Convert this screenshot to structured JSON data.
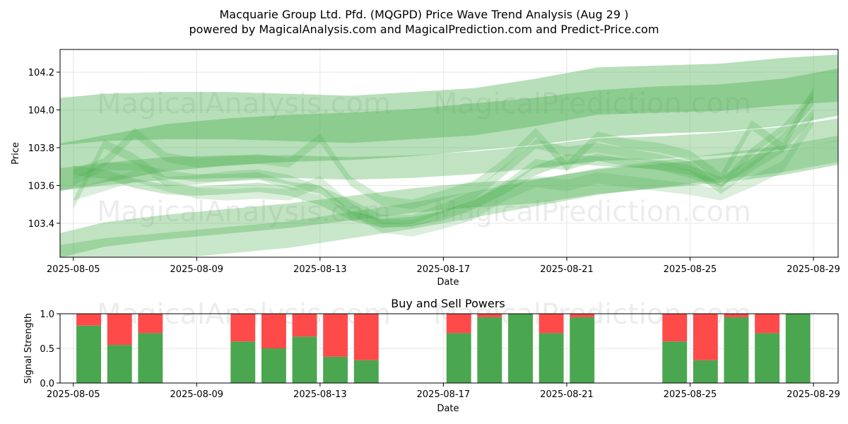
{
  "page": {
    "title": "Macquarie Group Ltd. Pfd. (MQGPD) Price Wave Trend Analysis (Aug 29 )",
    "subtitle": "powered by MagicalAnalysis.com and MagicalPrediction.com and Predict-Price.com",
    "watermarks": [
      "MagicalAnalysis.com",
      "MagicalPrediction.com"
    ]
  },
  "colors": {
    "band_green": "#4caf50",
    "buy_green": "#4aa64f",
    "sell_red": "#ff4a4a",
    "grid": "#e6e6e6"
  },
  "chart_data": [
    {
      "type": "area",
      "title": "",
      "xlabel": "Date",
      "ylabel": "Price",
      "xlim": [
        "2025-08-04",
        "2025-08-30"
      ],
      "ylim": [
        103.22,
        104.32
      ],
      "grid": true,
      "x_ticks": [
        "2025-08-05",
        "2025-08-09",
        "2025-08-13",
        "2025-08-17",
        "2025-08-21",
        "2025-08-25",
        "2025-08-29"
      ],
      "y_ticks": [
        "103.4",
        "103.6",
        "103.8",
        "104.0",
        "104.2"
      ],
      "bands": [
        {
          "x": [
            "2025-08-04",
            "2025-08-06",
            "2025-08-08",
            "2025-08-10",
            "2025-08-12",
            "2025-08-14",
            "2025-08-16",
            "2025-08-18",
            "2025-08-20",
            "2025-08-22",
            "2025-08-24",
            "2025-08-26",
            "2025-08-28",
            "2025-08-30"
          ],
          "center": [
            103.93,
            103.96,
            103.97,
            103.97,
            103.96,
            103.95,
            103.97,
            103.99,
            104.04,
            104.1,
            104.11,
            104.12,
            104.15,
            104.17
          ],
          "width": 0.25,
          "opacity": 0.4
        },
        {
          "x": [
            "2025-08-04",
            "2025-08-06",
            "2025-08-08",
            "2025-08-10",
            "2025-08-12",
            "2025-08-14",
            "2025-08-16",
            "2025-08-18",
            "2025-08-20",
            "2025-08-22",
            "2025-08-24",
            "2025-08-26",
            "2025-08-28",
            "2025-08-30"
          ],
          "center": [
            103.68,
            103.74,
            103.8,
            103.83,
            103.85,
            103.86,
            103.88,
            103.91,
            103.94,
            103.98,
            104.0,
            104.01,
            104.04,
            104.1
          ],
          "width": 0.25,
          "opacity": 0.4
        },
        {
          "x": [
            "2025-08-04",
            "2025-08-06",
            "2025-08-08",
            "2025-08-10",
            "2025-08-12",
            "2025-08-14",
            "2025-08-16",
            "2025-08-18",
            "2025-08-20",
            "2025-08-22",
            "2025-08-24",
            "2025-08-26",
            "2025-08-28",
            "2025-08-30"
          ],
          "center": [
            103.62,
            103.66,
            103.69,
            103.7,
            103.7,
            103.69,
            103.7,
            103.72,
            103.75,
            103.79,
            103.8,
            103.82,
            103.85,
            103.9
          ],
          "width": 0.12,
          "opacity": 0.35
        },
        {
          "x": [
            "2025-08-04",
            "2025-08-06",
            "2025-08-08",
            "2025-08-10",
            "2025-08-12",
            "2025-08-14",
            "2025-08-16",
            "2025-08-18",
            "2025-08-20",
            "2025-08-22",
            "2025-08-24",
            "2025-08-26",
            "2025-08-28",
            "2025-08-30"
          ],
          "center": [
            103.26,
            103.34,
            103.38,
            103.41,
            103.44,
            103.48,
            103.52,
            103.55,
            103.57,
            103.62,
            103.65,
            103.68,
            103.72,
            103.78
          ],
          "width": 0.13,
          "opacity": 0.35
        },
        {
          "x": [
            "2025-08-04",
            "2025-08-06",
            "2025-08-08",
            "2025-08-10",
            "2025-08-12",
            "2025-08-14",
            "2025-08-16",
            "2025-08-18",
            "2025-08-20",
            "2025-08-22",
            "2025-08-24",
            "2025-08-26",
            "2025-08-28",
            "2025-08-30"
          ],
          "center": [
            103.2,
            103.25,
            103.28,
            103.31,
            103.34,
            103.39,
            103.44,
            103.5,
            103.56,
            103.62,
            103.66,
            103.7,
            103.74,
            103.8
          ],
          "width": 0.14,
          "opacity": 0.3
        },
        {
          "x": [
            "2025-08-05",
            "2025-08-06",
            "2025-08-07",
            "2025-08-08",
            "2025-08-09",
            "2025-08-10",
            "2025-08-11",
            "2025-08-12",
            "2025-08-13",
            "2025-08-14",
            "2025-08-15",
            "2025-08-16",
            "2025-08-17",
            "2025-08-18",
            "2025-08-19",
            "2025-08-20",
            "2025-08-21",
            "2025-08-22",
            "2025-08-23",
            "2025-08-24",
            "2025-08-25",
            "2025-08-26",
            "2025-08-27",
            "2025-08-28",
            "2025-08-29"
          ],
          "center": [
            103.68,
            103.66,
            103.61,
            103.58,
            103.57,
            103.58,
            103.59,
            103.57,
            103.52,
            103.44,
            103.4,
            103.41,
            103.44,
            103.5,
            103.58,
            103.68,
            103.74,
            103.73,
            103.72,
            103.71,
            103.68,
            103.62,
            103.72,
            103.85,
            104.05
          ],
          "width": 0.05,
          "opacity": 0.3
        },
        {
          "x": [
            "2025-08-05",
            "2025-08-06",
            "2025-08-07",
            "2025-08-08",
            "2025-08-09",
            "2025-08-10",
            "2025-08-11",
            "2025-08-12",
            "2025-08-13",
            "2025-08-14",
            "2025-08-15",
            "2025-08-16",
            "2025-08-17",
            "2025-08-18",
            "2025-08-19",
            "2025-08-20",
            "2025-08-21",
            "2025-08-22",
            "2025-08-23",
            "2025-08-24",
            "2025-08-25",
            "2025-08-26",
            "2025-08-27",
            "2025-08-28",
            "2025-08-29"
          ],
          "center": [
            103.5,
            103.82,
            103.74,
            103.62,
            103.63,
            103.65,
            103.66,
            103.63,
            103.57,
            103.5,
            103.42,
            103.42,
            103.48,
            103.55,
            103.68,
            103.82,
            103.78,
            103.8,
            103.77,
            103.74,
            103.7,
            103.58,
            103.7,
            103.8,
            104.1
          ],
          "width": 0.05,
          "opacity": 0.25
        },
        {
          "x": [
            "2025-08-05",
            "2025-08-06",
            "2025-08-07",
            "2025-08-08",
            "2025-08-09",
            "2025-08-10",
            "2025-08-11",
            "2025-08-12",
            "2025-08-13",
            "2025-08-14",
            "2025-08-15",
            "2025-08-16",
            "2025-08-17",
            "2025-08-18",
            "2025-08-19",
            "2025-08-20",
            "2025-08-21",
            "2025-08-22",
            "2025-08-23",
            "2025-08-24",
            "2025-08-25",
            "2025-08-26",
            "2025-08-27",
            "2025-08-28",
            "2025-08-29"
          ],
          "center": [
            103.66,
            103.72,
            103.88,
            103.75,
            103.72,
            103.73,
            103.74,
            103.72,
            103.85,
            103.62,
            103.52,
            103.5,
            103.55,
            103.6,
            103.72,
            103.88,
            103.7,
            103.86,
            103.82,
            103.8,
            103.76,
            103.64,
            103.92,
            103.8,
            103.98
          ],
          "width": 0.05,
          "opacity": 0.25
        },
        {
          "x": [
            "2025-08-05",
            "2025-08-06",
            "2025-08-07",
            "2025-08-08",
            "2025-08-09",
            "2025-08-10",
            "2025-08-11",
            "2025-08-12",
            "2025-08-13",
            "2025-08-14",
            "2025-08-15",
            "2025-08-16",
            "2025-08-17",
            "2025-08-18",
            "2025-08-19",
            "2025-08-20",
            "2025-08-21",
            "2025-08-22",
            "2025-08-23",
            "2025-08-24",
            "2025-08-25",
            "2025-08-26",
            "2025-08-27",
            "2025-08-28",
            "2025-08-29"
          ],
          "center": [
            103.55,
            103.6,
            103.65,
            103.6,
            103.56,
            103.55,
            103.56,
            103.55,
            103.62,
            103.48,
            103.38,
            103.36,
            103.4,
            103.45,
            103.55,
            103.62,
            103.6,
            103.64,
            103.62,
            103.6,
            103.58,
            103.55,
            103.62,
            103.7,
            103.95
          ],
          "width": 0.06,
          "opacity": 0.2
        },
        {
          "x": [
            "2025-08-05",
            "2025-08-06",
            "2025-08-07",
            "2025-08-08",
            "2025-08-09",
            "2025-08-10",
            "2025-08-11",
            "2025-08-12",
            "2025-08-13",
            "2025-08-14",
            "2025-08-15",
            "2025-08-16",
            "2025-08-17",
            "2025-08-18",
            "2025-08-19",
            "2025-08-20",
            "2025-08-21",
            "2025-08-22",
            "2025-08-23",
            "2025-08-24",
            "2025-08-25",
            "2025-08-26",
            "2025-08-27",
            "2025-08-28",
            "2025-08-29"
          ],
          "center": [
            103.62,
            103.7,
            103.7,
            103.66,
            103.64,
            103.64,
            103.65,
            103.6,
            103.58,
            103.45,
            103.4,
            103.4,
            103.45,
            103.5,
            103.6,
            103.72,
            103.7,
            103.75,
            103.72,
            103.7,
            103.66,
            103.6,
            103.78,
            103.9,
            104.08
          ],
          "width": 0.04,
          "opacity": 0.25
        }
      ]
    },
    {
      "type": "bar",
      "title": "Buy and Sell Powers",
      "xlabel": "Date",
      "ylabel": "Signal Strength",
      "xlim": [
        "2025-08-04",
        "2025-08-30"
      ],
      "ylim": [
        0,
        1
      ],
      "grid": true,
      "x_ticks": [
        "2025-08-05",
        "2025-08-09",
        "2025-08-13",
        "2025-08-17",
        "2025-08-21",
        "2025-08-25",
        "2025-08-29"
      ],
      "y_ticks": [
        "0.0",
        "0.5",
        "1.0"
      ],
      "categories": [
        "2025-08-05",
        "2025-08-06",
        "2025-08-07",
        "2025-08-10",
        "2025-08-11",
        "2025-08-12",
        "2025-08-13",
        "2025-08-14",
        "2025-08-17",
        "2025-08-18",
        "2025-08-19",
        "2025-08-20",
        "2025-08-21",
        "2025-08-24",
        "2025-08-25",
        "2025-08-26",
        "2025-08-27",
        "2025-08-28"
      ],
      "series": [
        {
          "values": [
            0.83,
            0.55,
            0.72,
            0.6,
            0.5,
            0.67,
            0.38,
            0.33,
            0.72,
            0.95,
            1.0,
            0.72,
            0.95,
            0.6,
            0.33,
            0.95,
            0.72,
            1.0
          ]
        },
        {
          "values": [
            0.17,
            0.45,
            0.28,
            0.4,
            0.5,
            0.33,
            0.62,
            0.67,
            0.28,
            0.05,
            0.0,
            0.28,
            0.05,
            0.4,
            0.67,
            0.05,
            0.28,
            0.0
          ]
        }
      ]
    }
  ]
}
